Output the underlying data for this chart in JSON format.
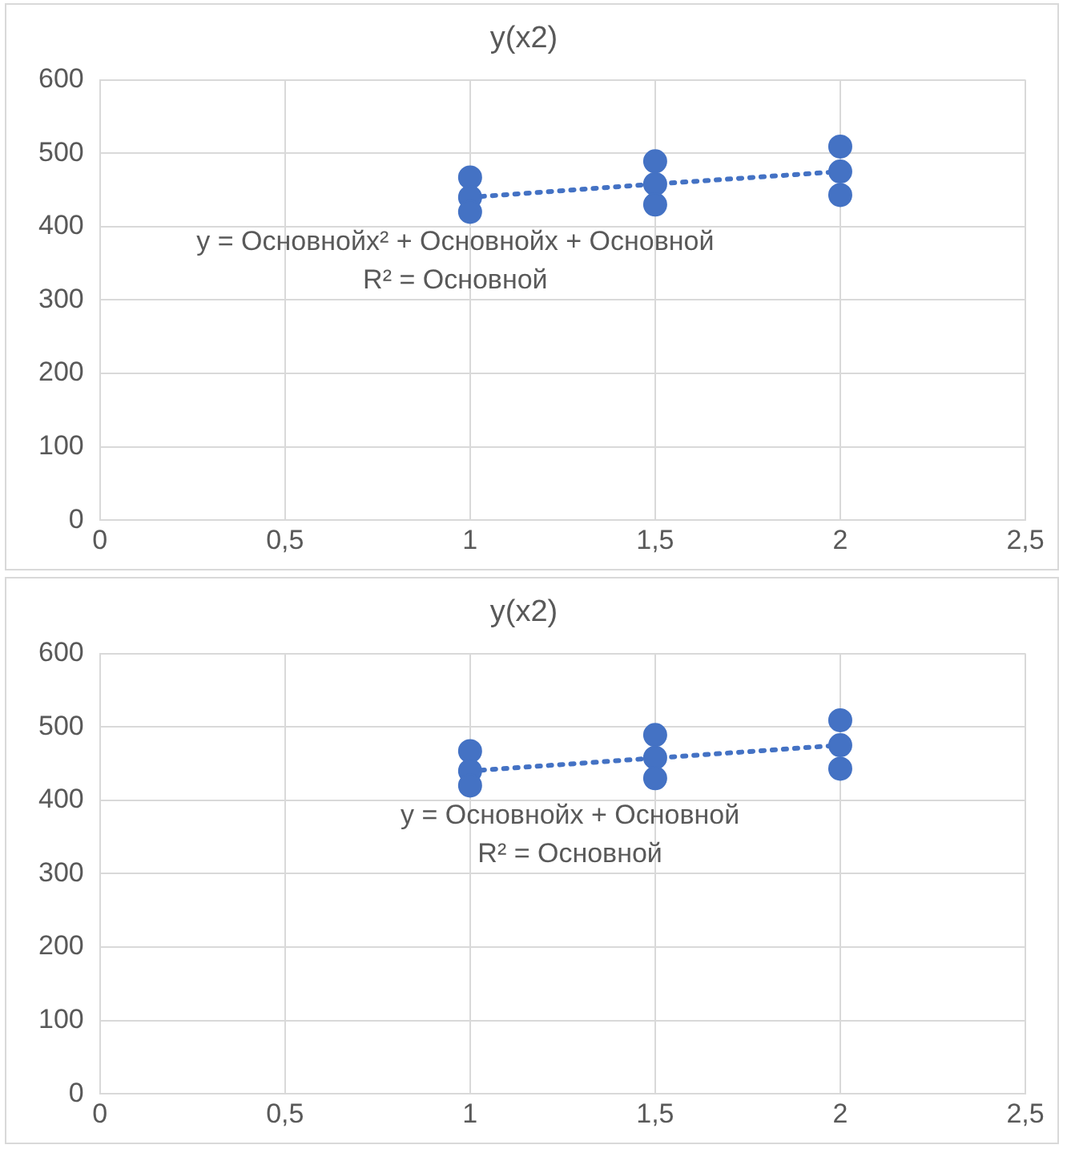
{
  "chart_data": [
    {
      "type": "scatter",
      "title": "y(x2)",
      "xlim": [
        0,
        2.5
      ],
      "ylim": [
        0,
        600
      ],
      "xticks": [
        0,
        {
          "value": 0.5,
          "label": "0,5"
        },
        1,
        {
          "value": 1.5,
          "label": "1,5"
        },
        2,
        {
          "value": 2.5,
          "label": "2,5"
        }
      ],
      "yticks": [
        0,
        100,
        200,
        300,
        400,
        500,
        600
      ],
      "grid": true,
      "legend": false,
      "annotations": [
        "y = Основнойх² + Основнойх + Основной",
        "R² = Основной"
      ],
      "series": [
        {
          "color": "#4472c4",
          "marker": "circle",
          "x": [
            1,
            1,
            1,
            1.5,
            1.5,
            1.5,
            2,
            2,
            2
          ],
          "values": [
            467,
            440,
            420,
            489,
            458,
            430,
            509,
            475,
            443
          ]
        },
        {
          "type": "line",
          "color": "#4472c4",
          "line_style": "dotted",
          "marker": "none",
          "x": [
            1,
            1.5,
            2
          ],
          "values": [
            440,
            458,
            475
          ]
        }
      ]
    },
    {
      "type": "scatter",
      "title": "y(x2)",
      "xlim": [
        0,
        2.5
      ],
      "ylim": [
        0,
        600
      ],
      "xticks": [
        0,
        {
          "value": 0.5,
          "label": "0,5"
        },
        1,
        {
          "value": 1.5,
          "label": "1,5"
        },
        2,
        {
          "value": 2.5,
          "label": "2,5"
        }
      ],
      "yticks": [
        0,
        100,
        200,
        300,
        400,
        500,
        600
      ],
      "grid": true,
      "legend": false,
      "annotations": [
        "y = Основнойх + Основной",
        "R² = Основной"
      ],
      "series": [
        {
          "color": "#4472c4",
          "marker": "circle",
          "x": [
            1,
            1,
            1,
            1.5,
            1.5,
            1.5,
            2,
            2,
            2
          ],
          "values": [
            467,
            440,
            420,
            489,
            458,
            430,
            509,
            475,
            443
          ]
        },
        {
          "type": "line",
          "color": "#4472c4",
          "line_style": "dotted",
          "marker": "none",
          "x": [
            1,
            2
          ],
          "values": [
            440,
            475
          ]
        }
      ]
    }
  ]
}
